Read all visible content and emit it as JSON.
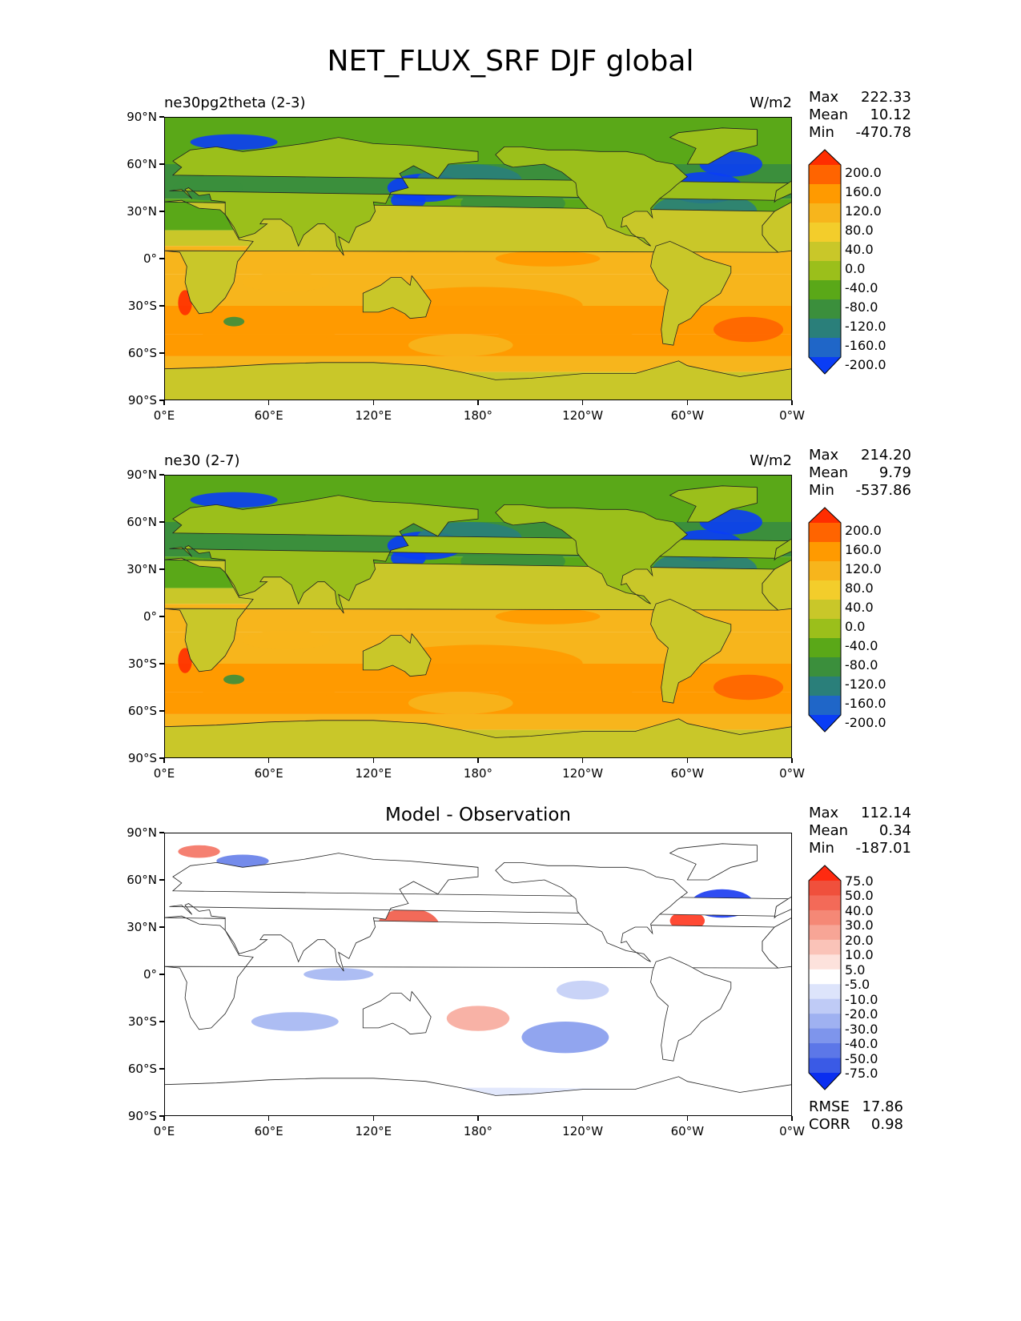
{
  "title": "NET_FLUX_SRF DJF global",
  "x_ticks": [
    "0°E",
    "60°E",
    "120°E",
    "180°",
    "120°W",
    "60°W",
    "0°W"
  ],
  "y_ticks": [
    "90°N",
    "60°N",
    "30°N",
    "0°",
    "30°S",
    "60°S",
    "90°S"
  ],
  "chart_data": [
    {
      "type": "heatmap",
      "title": "ne30pg2theta (2-3)",
      "unit_label": "W/m2",
      "stats": {
        "max_label": "Max",
        "max": "222.33",
        "mean_label": "Mean",
        "mean": "10.12",
        "min_label": "Min",
        "min": "-470.78"
      },
      "colorbar_levels": [
        "200.0",
        "160.0",
        "120.0",
        "80.0",
        "40.0",
        "0.0",
        "-40.0",
        "-80.0",
        "-120.0",
        "-160.0",
        "-200.0"
      ],
      "colormap": [
        "#ff2d00",
        "#ff6400",
        "#ff9a00",
        "#f7b51c",
        "#f3cd2b",
        "#c9c729",
        "#9bbf1b",
        "#5aa818",
        "#3b8f3c",
        "#2a7f7a",
        "#1f66c8",
        "#0a3df5"
      ],
      "xlim": [
        0,
        360
      ],
      "ylim": [
        -90,
        90
      ]
    },
    {
      "type": "heatmap",
      "title": "ne30 (2-7)",
      "unit_label": "W/m2",
      "stats": {
        "max_label": "Max",
        "max": "214.20",
        "mean_label": "Mean",
        "mean": "9.79",
        "min_label": "Min",
        "min": "-537.86"
      },
      "colorbar_levels": [
        "200.0",
        "160.0",
        "120.0",
        "80.0",
        "40.0",
        "0.0",
        "-40.0",
        "-80.0",
        "-120.0",
        "-160.0",
        "-200.0"
      ],
      "colormap": [
        "#ff2d00",
        "#ff6400",
        "#ff9a00",
        "#f7b51c",
        "#f3cd2b",
        "#c9c729",
        "#9bbf1b",
        "#5aa818",
        "#3b8f3c",
        "#2a7f7a",
        "#1f66c8",
        "#0a3df5"
      ],
      "xlim": [
        0,
        360
      ],
      "ylim": [
        -90,
        90
      ]
    },
    {
      "type": "heatmap",
      "title": "Model - Observation",
      "unit_label": "",
      "stats": {
        "max_label": "Max",
        "max": "112.14",
        "mean_label": "Mean",
        "mean": "0.34",
        "min_label": "Min",
        "min": "-187.01",
        "rmse_label": "RMSE",
        "rmse": "17.86",
        "corr_label": "CORR",
        "corr": "0.98"
      },
      "colorbar_levels": [
        "75.0",
        "50.0",
        "40.0",
        "30.0",
        "20.0",
        "10.0",
        "5.0",
        "-5.0",
        "-10.0",
        "-20.0",
        "-30.0",
        "-40.0",
        "-50.0",
        "-75.0"
      ],
      "colormap": [
        "#ff2a10",
        "#f0503c",
        "#f36a58",
        "#f58876",
        "#f7a596",
        "#fac3b8",
        "#fde2dc",
        "#ffffff",
        "#dde4fb",
        "#bfcbf6",
        "#9fb1f1",
        "#7e95ec",
        "#5c77e8",
        "#3a5ae6",
        "#0a2ef0"
      ],
      "xlim": [
        0,
        360
      ],
      "ylim": [
        -90,
        90
      ]
    }
  ]
}
